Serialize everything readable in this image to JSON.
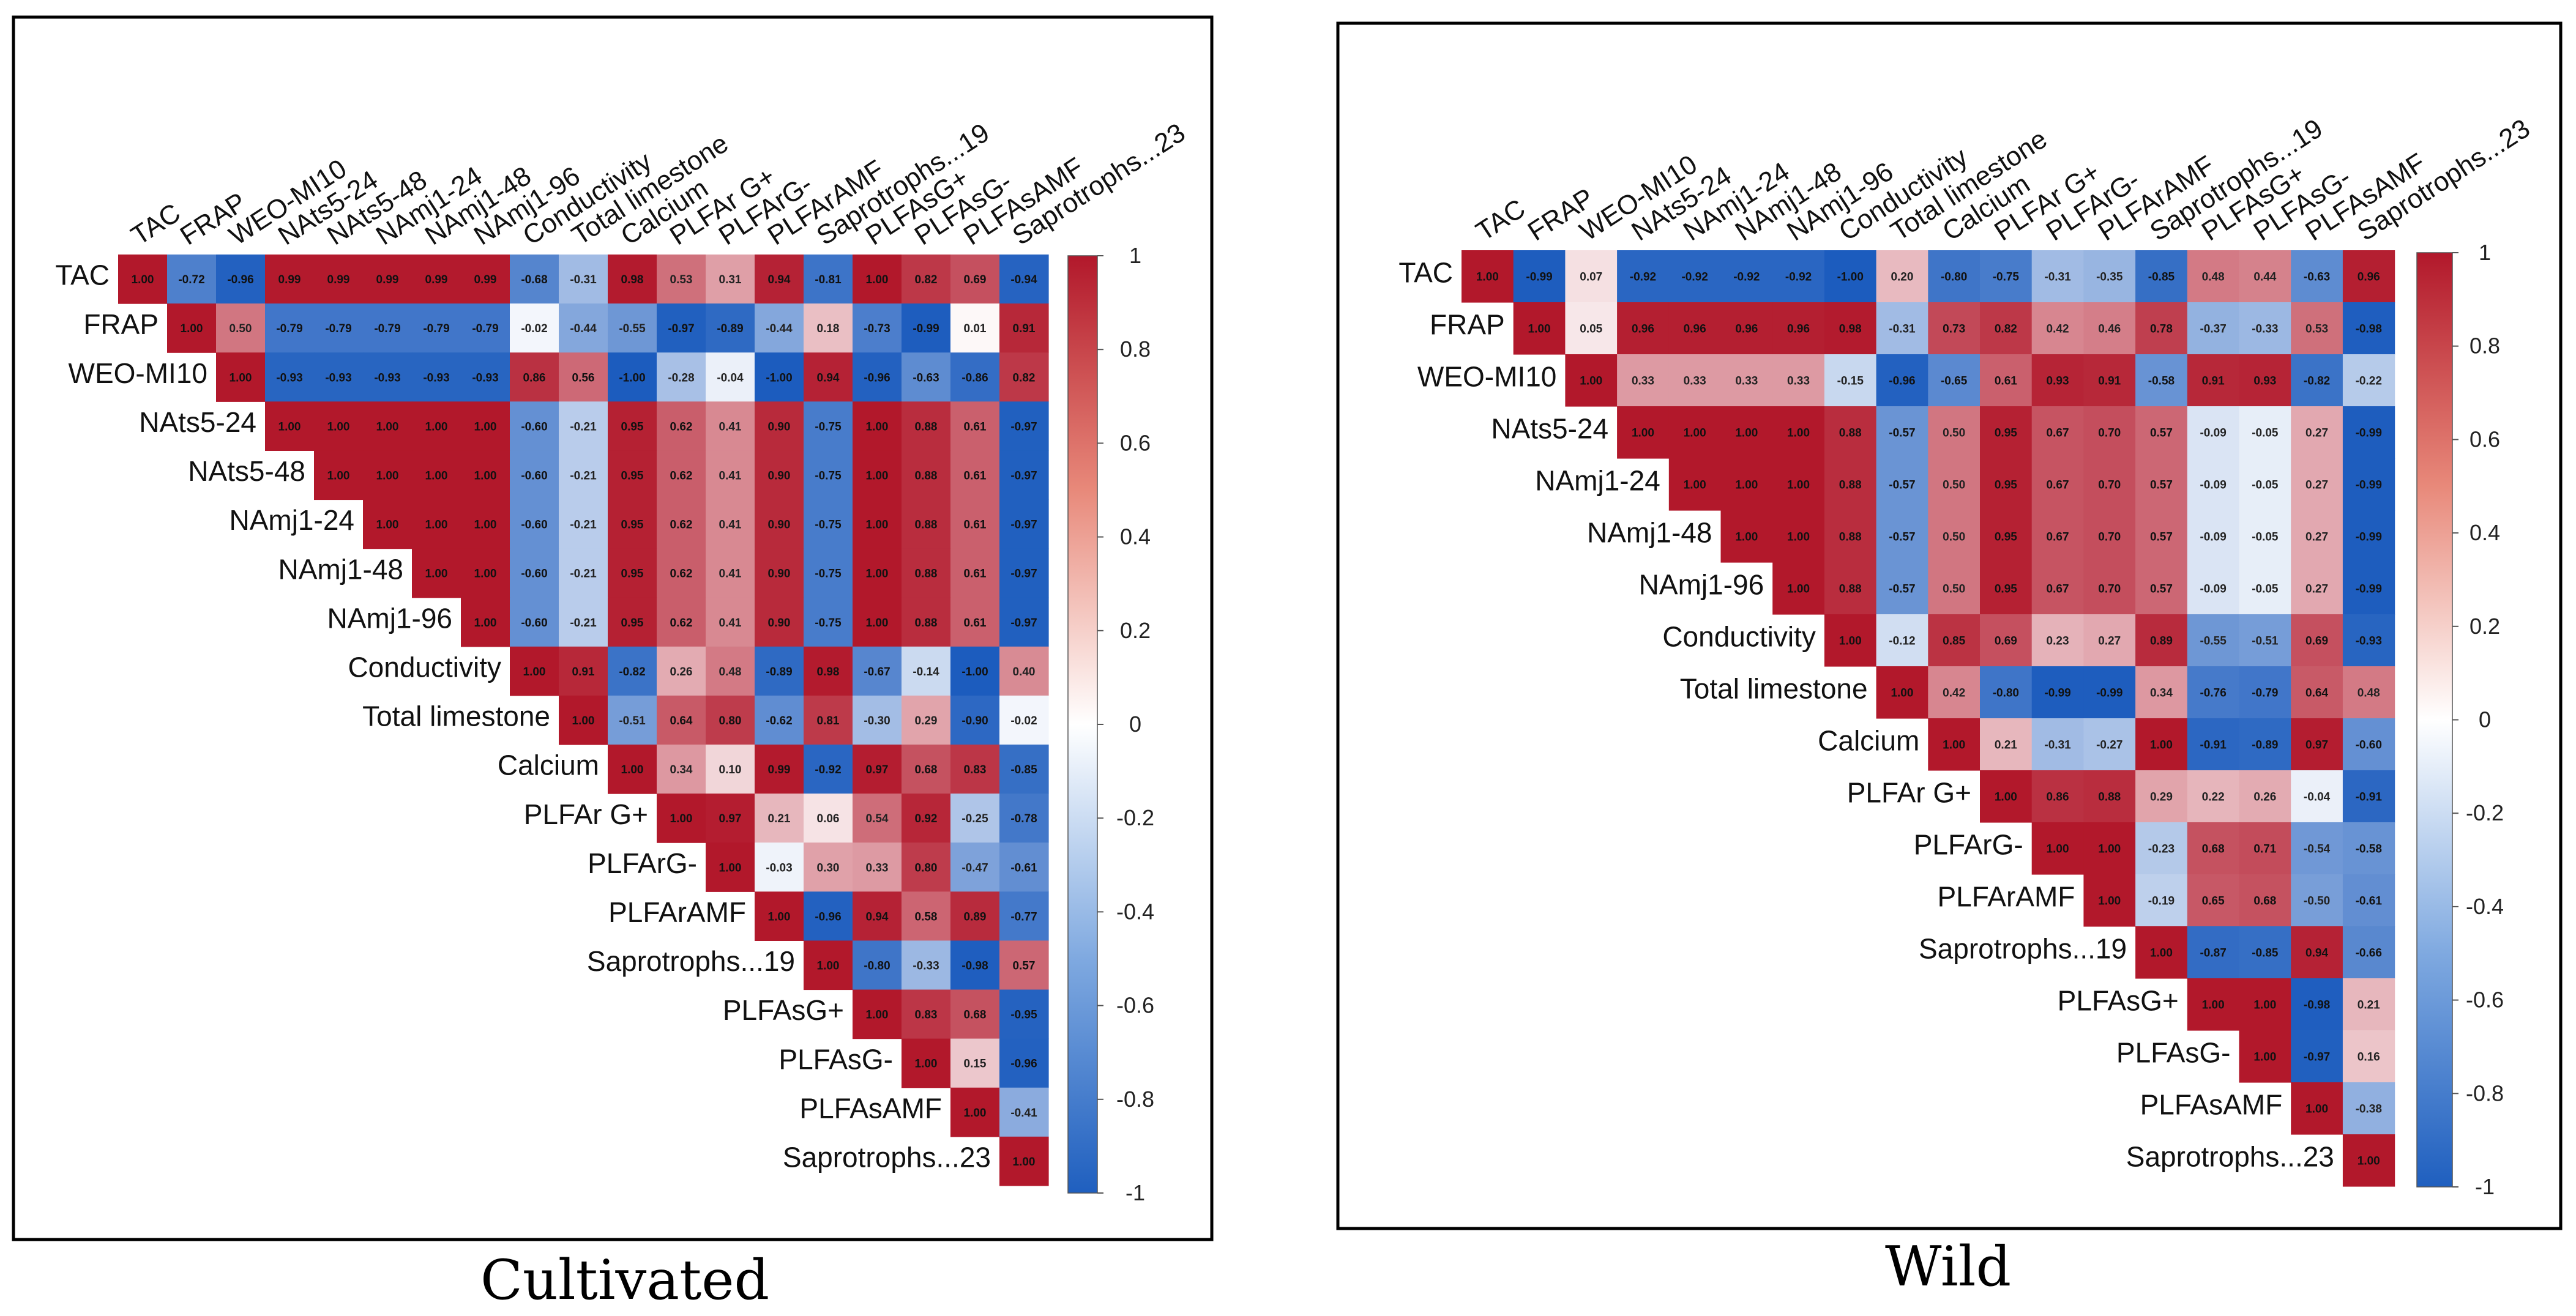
{
  "chart_data": [
    {
      "type": "heatmap",
      "title": "Cultivated",
      "variables": [
        "TAC",
        "FRAP",
        "WEO-MI10",
        "NAts5-24",
        "NAts5-48",
        "NAmj1-24",
        "NAmj1-48",
        "NAmj1-96",
        "Conductivity",
        "Total limestone",
        "Calcium",
        "PLFAr G+",
        "PLFArG-",
        "PLFArAMF",
        "Saprotrophs...19",
        "PLFAsG+",
        "PLFAsG-",
        "PLFAsAMF",
        "Saprotrophs...23"
      ],
      "upper_triangle": [
        [
          "1.00",
          "-0.72",
          "-0.96",
          "0.99",
          "0.99",
          "0.99",
          "0.99",
          "0.99",
          "-0.68",
          "-0.31",
          "0.98",
          "0.53",
          "0.31",
          "0.94",
          "-0.81",
          "1.00",
          "0.82",
          "0.69",
          "-0.94"
        ],
        [
          "1.00",
          "0.50",
          "-0.79",
          "-0.79",
          "-0.79",
          "-0.79",
          "-0.79",
          "-0.02",
          "-0.44",
          "-0.55",
          "-0.97",
          "-0.89",
          "-0.44",
          "0.18",
          "-0.73",
          "-0.99",
          "0.01",
          "0.91"
        ],
        [
          "1.00",
          "-0.93",
          "-0.93",
          "-0.93",
          "-0.93",
          "-0.93",
          "0.86",
          "0.56",
          "-1.00",
          "-0.28",
          "-0.04",
          "-1.00",
          "0.94",
          "-0.96",
          "-0.63",
          "-0.86",
          "0.82"
        ],
        [
          "1.00",
          "1.00",
          "1.00",
          "1.00",
          "1.00",
          "-0.60",
          "-0.21",
          "0.95",
          "0.62",
          "0.41",
          "0.90",
          "-0.75",
          "1.00",
          "0.88",
          "0.61",
          "-0.97"
        ],
        [
          "1.00",
          "1.00",
          "1.00",
          "1.00",
          "-0.60",
          "-0.21",
          "0.95",
          "0.62",
          "0.41",
          "0.90",
          "-0.75",
          "1.00",
          "0.88",
          "0.61",
          "-0.97"
        ],
        [
          "1.00",
          "1.00",
          "1.00",
          "-0.60",
          "-0.21",
          "0.95",
          "0.62",
          "0.41",
          "0.90",
          "-0.75",
          "1.00",
          "0.88",
          "0.61",
          "-0.97"
        ],
        [
          "1.00",
          "1.00",
          "-0.60",
          "-0.21",
          "0.95",
          "0.62",
          "0.41",
          "0.90",
          "-0.75",
          "1.00",
          "0.88",
          "0.61",
          "-0.97"
        ],
        [
          "1.00",
          "-0.60",
          "-0.21",
          "0.95",
          "0.62",
          "0.41",
          "0.90",
          "-0.75",
          "1.00",
          "0.88",
          "0.61",
          "-0.97"
        ],
        [
          "1.00",
          "0.91",
          "-0.82",
          "0.26",
          "0.48",
          "-0.89",
          "0.98",
          "-0.67",
          "-0.14",
          "-1.00",
          "0.40"
        ],
        [
          "1.00",
          "-0.51",
          "0.64",
          "0.80",
          "-0.62",
          "0.81",
          "-0.30",
          "0.29",
          "-0.90",
          "-0.02"
        ],
        [
          "1.00",
          "0.34",
          "0.10",
          "0.99",
          "-0.92",
          "0.97",
          "0.68",
          "0.83",
          "-0.85"
        ],
        [
          "1.00",
          "0.97",
          "0.21",
          "0.06",
          "0.54",
          "0.92",
          "-0.25",
          "-0.78"
        ],
        [
          "1.00",
          "-0.03",
          "0.30",
          "0.33",
          "0.80",
          "-0.47",
          "-0.61"
        ],
        [
          "1.00",
          "-0.96",
          "0.94",
          "0.58",
          "0.89",
          "-0.77"
        ],
        [
          "1.00",
          "-0.80",
          "-0.33",
          "-0.98",
          "0.57"
        ],
        [
          "1.00",
          "0.83",
          "0.68",
          "-0.95"
        ],
        [
          "1.00",
          "0.15",
          "-0.96"
        ],
        [
          "1.00",
          "-0.41"
        ],
        [
          "1.00"
        ]
      ],
      "colorbar_range": [
        -1,
        1
      ],
      "colorbar_ticks": [
        "1",
        "0.8",
        "0.6",
        "0.4",
        "0.2",
        "0",
        "-0.2",
        "-0.4",
        "-0.6",
        "-0.8",
        "-1"
      ]
    },
    {
      "type": "heatmap",
      "title": "Wild",
      "variables": [
        "TAC",
        "FRAP",
        "WEO-MI10",
        "NAts5-24",
        "NAmj1-24",
        "NAmj1-48",
        "NAmj1-96",
        "Conductivity",
        "Total limestone",
        "Calcium",
        "PLFAr G+",
        "PLFArG-",
        "PLFArAMF",
        "Saprotrophs...19",
        "PLFAsG+",
        "PLFAsG-",
        "PLFAsAMF",
        "Saprotrophs...23"
      ],
      "upper_triangle": [
        [
          "1.00",
          "-0.99",
          "0.07",
          "-0.92",
          "-0.92",
          "-0.92",
          "-0.92",
          "-1.00",
          "0.20",
          "-0.80",
          "-0.75",
          "-0.31",
          "-0.35",
          "-0.85",
          "0.48",
          "0.44",
          "-0.63",
          "0.96"
        ],
        [
          "1.00",
          "0.05",
          "0.96",
          "0.96",
          "0.96",
          "0.96",
          "0.98",
          "-0.31",
          "0.73",
          "0.82",
          "0.42",
          "0.46",
          "0.78",
          "-0.37",
          "-0.33",
          "0.53",
          "-0.98"
        ],
        [
          "1.00",
          "0.33",
          "0.33",
          "0.33",
          "0.33",
          "-0.15",
          "-0.96",
          "-0.65",
          "0.61",
          "0.93",
          "0.91",
          "-0.58",
          "0.91",
          "0.93",
          "-0.82",
          "-0.22"
        ],
        [
          "1.00",
          "1.00",
          "1.00",
          "1.00",
          "0.88",
          "-0.57",
          "0.50",
          "0.95",
          "0.67",
          "0.70",
          "0.57",
          "-0.09",
          "-0.05",
          "0.27",
          "-0.99"
        ],
        [
          "1.00",
          "1.00",
          "1.00",
          "0.88",
          "-0.57",
          "0.50",
          "0.95",
          "0.67",
          "0.70",
          "0.57",
          "-0.09",
          "-0.05",
          "0.27",
          "-0.99"
        ],
        [
          "1.00",
          "1.00",
          "0.88",
          "-0.57",
          "0.50",
          "0.95",
          "0.67",
          "0.70",
          "0.57",
          "-0.09",
          "-0.05",
          "0.27",
          "-0.99"
        ],
        [
          "1.00",
          "0.88",
          "-0.57",
          "0.50",
          "0.95",
          "0.67",
          "0.70",
          "0.57",
          "-0.09",
          "-0.05",
          "0.27",
          "-0.99"
        ],
        [
          "1.00",
          "-0.12",
          "0.85",
          "0.69",
          "0.23",
          "0.27",
          "0.89",
          "-0.55",
          "-0.51",
          "0.69",
          "-0.93"
        ],
        [
          "1.00",
          "0.42",
          "-0.80",
          "-0.99",
          "-0.99",
          "0.34",
          "-0.76",
          "-0.79",
          "0.64",
          "0.48"
        ],
        [
          "1.00",
          "0.21",
          "-0.31",
          "-0.27",
          "1.00",
          "-0.91",
          "-0.89",
          "0.97",
          "-0.60"
        ],
        [
          "1.00",
          "0.86",
          "0.88",
          "0.29",
          "0.22",
          "0.26",
          "-0.04",
          "-0.91"
        ],
        [
          "1.00",
          "1.00",
          "-0.23",
          "0.68",
          "0.71",
          "-0.54",
          "-0.58"
        ],
        [
          "1.00",
          "-0.19",
          "0.65",
          "0.68",
          "-0.50",
          "-0.61"
        ],
        [
          "1.00",
          "-0.87",
          "-0.85",
          "0.94",
          "-0.66"
        ],
        [
          "1.00",
          "1.00",
          "-0.98",
          "0.21"
        ],
        [
          "1.00",
          "-0.97",
          "0.16"
        ],
        [
          "1.00",
          "-0.38"
        ],
        [
          "1.00"
        ]
      ],
      "colorbar_range": [
        -1,
        1
      ],
      "colorbar_ticks": [
        "1",
        "0.8",
        "0.6",
        "0.4",
        "0.2",
        "0",
        "-0.2",
        "-0.4",
        "-0.6",
        "-0.8",
        "-1"
      ]
    }
  ],
  "captions": {
    "left": "Cultivated",
    "right": "Wild"
  }
}
